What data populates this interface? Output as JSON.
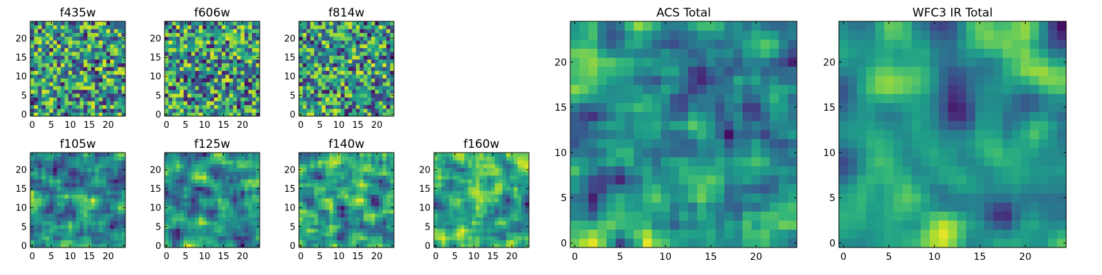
{
  "chart_data": [
    {
      "type": "heatmap",
      "title": "f435w",
      "xticks": [
        0,
        5,
        10,
        15,
        20
      ],
      "yticks": [
        0,
        5,
        10,
        15,
        20
      ],
      "xlim": [
        -0.5,
        24.5
      ],
      "ylim": [
        -0.5,
        24.5
      ],
      "grid_size": [
        25,
        25
      ],
      "colormap": "viridis",
      "grid": false
    },
    {
      "type": "heatmap",
      "title": "f606w",
      "xticks": [
        0,
        5,
        10,
        15,
        20
      ],
      "yticks": [
        0,
        5,
        10,
        15,
        20
      ],
      "xlim": [
        -0.5,
        24.5
      ],
      "ylim": [
        -0.5,
        24.5
      ],
      "grid_size": [
        25,
        25
      ],
      "colormap": "viridis",
      "grid": false
    },
    {
      "type": "heatmap",
      "title": "f814w",
      "xticks": [
        0,
        5,
        10,
        15,
        20
      ],
      "yticks": [
        0,
        5,
        10,
        15,
        20
      ],
      "xlim": [
        -0.5,
        24.5
      ],
      "ylim": [
        -0.5,
        24.5
      ],
      "grid_size": [
        25,
        25
      ],
      "colormap": "viridis",
      "grid": false
    },
    {
      "type": "heatmap",
      "title": "f105w",
      "xticks": [
        0,
        5,
        10,
        15,
        20
      ],
      "yticks": [
        0,
        5,
        10,
        15,
        20
      ],
      "xlim": [
        -0.5,
        24.5
      ],
      "ylim": [
        -0.5,
        24.5
      ],
      "grid_size": [
        25,
        25
      ],
      "colormap": "viridis",
      "grid": false
    },
    {
      "type": "heatmap",
      "title": "f125w",
      "xticks": [
        0,
        5,
        10,
        15,
        20
      ],
      "yticks": [
        0,
        5,
        10,
        15,
        20
      ],
      "xlim": [
        -0.5,
        24.5
      ],
      "ylim": [
        -0.5,
        24.5
      ],
      "grid_size": [
        25,
        25
      ],
      "colormap": "viridis",
      "grid": false
    },
    {
      "type": "heatmap",
      "title": "f140w",
      "xticks": [
        0,
        5,
        10,
        15,
        20
      ],
      "yticks": [
        0,
        5,
        10,
        15,
        20
      ],
      "xlim": [
        -0.5,
        24.5
      ],
      "ylim": [
        -0.5,
        24.5
      ],
      "grid_size": [
        25,
        25
      ],
      "colormap": "viridis",
      "grid": false
    },
    {
      "type": "heatmap",
      "title": "f160w",
      "xticks": [
        0,
        5,
        10,
        15,
        20
      ],
      "yticks": [
        0,
        5,
        10,
        15,
        20
      ],
      "xlim": [
        -0.5,
        24.5
      ],
      "ylim": [
        -0.5,
        24.5
      ],
      "grid_size": [
        25,
        25
      ],
      "colormap": "viridis",
      "grid": false
    },
    {
      "type": "heatmap",
      "title": "ACS Total",
      "xticks": [
        0,
        5,
        10,
        15,
        20
      ],
      "yticks": [
        0,
        5,
        10,
        15,
        20
      ],
      "xlim": [
        -0.5,
        24.5
      ],
      "ylim": [
        -0.5,
        24.5
      ],
      "grid_size": [
        25,
        25
      ],
      "colormap": "viridis",
      "grid": false
    },
    {
      "type": "heatmap",
      "title": "WFC3 IR Total",
      "xticks": [
        0,
        5,
        10,
        15,
        20
      ],
      "yticks": [
        0,
        5,
        10,
        15,
        20
      ],
      "xlim": [
        -0.5,
        24.5
      ],
      "ylim": [
        -0.5,
        24.5
      ],
      "grid_size": [
        25,
        25
      ],
      "colormap": "viridis",
      "grid": false
    }
  ]
}
